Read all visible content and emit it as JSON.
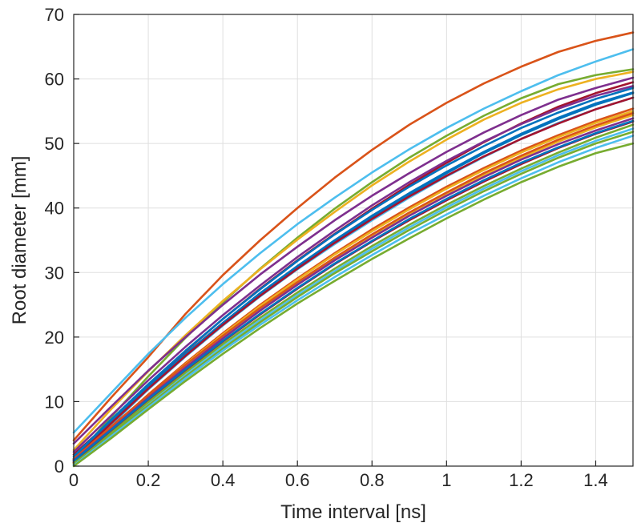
{
  "chart_data": {
    "type": "line",
    "title": "",
    "xlabel": "Time interval [ns]",
    "ylabel": "Root diameter [mm]",
    "xlim": [
      0,
      1.5
    ],
    "ylim": [
      0,
      70
    ],
    "x_ticks": [
      0,
      0.2,
      0.4,
      0.6,
      0.8,
      1,
      1.2,
      1.4
    ],
    "x_tick_labels": [
      "0",
      "0.2",
      "0.4",
      "0.6",
      "0.8",
      "1",
      "1.2",
      "1.4"
    ],
    "y_ticks": [
      0,
      10,
      20,
      30,
      40,
      50,
      60,
      70
    ],
    "y_tick_labels": [
      "0",
      "10",
      "20",
      "30",
      "40",
      "50",
      "60",
      "70"
    ],
    "grid": true,
    "legend": false,
    "x": [
      0,
      0.1,
      0.2,
      0.3,
      0.4,
      0.5,
      0.6,
      0.7,
      0.8,
      0.9,
      1.0,
      1.1,
      1.2,
      1.3,
      1.4,
      1.5
    ],
    "series": [
      {
        "color": "#D95319",
        "values": [
          4.0,
          10.6,
          16.9,
          23.6,
          29.6,
          35.0,
          40.0,
          44.7,
          49.0,
          52.9,
          56.3,
          59.3,
          61.9,
          64.2,
          65.9,
          67.2
        ]
      },
      {
        "color": "#4DBEEE",
        "values": [
          5.2,
          11.3,
          17.4,
          23.0,
          28.2,
          33.0,
          37.5,
          41.6,
          45.5,
          49.1,
          52.4,
          55.4,
          58.1,
          60.6,
          62.7,
          64.6
        ]
      },
      {
        "color": "#77AC30",
        "values": [
          1.0,
          7.6,
          13.9,
          19.9,
          25.4,
          30.6,
          35.4,
          39.9,
          44.0,
          47.8,
          51.2,
          54.3,
          57.0,
          59.2,
          60.6,
          61.5
        ]
      },
      {
        "color": "#EDB120",
        "values": [
          2.5,
          8.8,
          14.7,
          20.3,
          25.6,
          30.5,
          35.1,
          39.4,
          43.5,
          47.2,
          50.6,
          53.7,
          56.3,
          58.4,
          60.0,
          61.1
        ]
      },
      {
        "color": "#7E2F8E",
        "values": [
          3.5,
          9.2,
          14.8,
          20.0,
          25.0,
          29.7,
          34.0,
          38.1,
          41.9,
          45.4,
          48.7,
          51.7,
          54.4,
          56.8,
          58.6,
          60.2
        ]
      },
      {
        "color": "#A2142F",
        "values": [
          1.8,
          7.0,
          12.6,
          17.8,
          22.8,
          27.5,
          31.9,
          36.0,
          39.9,
          43.6,
          47.0,
          50.2,
          53.1,
          55.7,
          57.8,
          59.5
        ]
      },
      {
        "color": "#7E2F8E",
        "values": [
          2.2,
          7.8,
          13.3,
          18.5,
          23.4,
          28.0,
          32.4,
          36.5,
          40.4,
          44.0,
          47.3,
          50.3,
          53.0,
          55.4,
          57.4,
          58.9
        ]
      },
      {
        "color": "#0072BD",
        "values": [
          1.5,
          7.2,
          12.7,
          17.9,
          22.8,
          27.4,
          31.8,
          35.9,
          39.7,
          43.3,
          46.6,
          49.6,
          52.4,
          54.8,
          56.9,
          58.6
        ]
      },
      {
        "color": "#0072BD",
        "values": [
          0.6,
          6.4,
          11.9,
          17.0,
          21.8,
          26.4,
          30.7,
          34.7,
          38.5,
          42.1,
          45.4,
          48.5,
          51.3,
          53.8,
          56.0,
          57.8
        ]
      },
      {
        "color": "#0072BD",
        "values": [
          1.2,
          6.9,
          12.3,
          17.4,
          22.2,
          26.8,
          31.0,
          35.0,
          38.8,
          42.3,
          45.6,
          48.7,
          51.5,
          54.0,
          56.2,
          57.9
        ]
      },
      {
        "color": "#4DBEEE",
        "values": [
          0.8,
          6.5,
          11.9,
          17.0,
          21.8,
          26.3,
          30.5,
          34.4,
          38.1,
          41.6,
          44.9,
          47.9,
          50.7,
          53.2,
          55.3,
          57.1
        ]
      },
      {
        "color": "#A2142F",
        "values": [
          1.0,
          6.6,
          12.0,
          17.1,
          21.9,
          26.4,
          30.6,
          34.6,
          38.3,
          41.8,
          45.0,
          48.0,
          50.7,
          53.1,
          55.3,
          57.1
        ]
      },
      {
        "color": "#D95319",
        "values": [
          0.5,
          5.9,
          11.1,
          16.0,
          20.6,
          25.0,
          29.1,
          33.0,
          36.7,
          40.1,
          43.3,
          46.2,
          48.9,
          51.3,
          53.5,
          55.4
        ]
      },
      {
        "color": "#EDB120",
        "values": [
          0.7,
          5.8,
          10.9,
          15.8,
          20.4,
          24.8,
          28.9,
          32.8,
          36.4,
          39.8,
          43.0,
          45.9,
          48.6,
          51.0,
          53.2,
          55.0
        ]
      },
      {
        "color": "#EDB120",
        "values": [
          0.4,
          5.4,
          10.4,
          15.2,
          19.8,
          24.1,
          28.2,
          32.0,
          35.6,
          39.0,
          42.2,
          45.1,
          47.8,
          50.3,
          52.5,
          54.4
        ]
      },
      {
        "color": "#D95319",
        "values": [
          1.1,
          6.1,
          11.0,
          15.7,
          20.2,
          24.5,
          28.5,
          32.3,
          35.9,
          39.3,
          42.4,
          45.4,
          48.1,
          50.6,
          52.8,
          54.7
        ]
      },
      {
        "color": "#7E2F8E",
        "values": [
          0.9,
          5.7,
          10.6,
          15.3,
          19.8,
          24.1,
          28.1,
          31.9,
          35.4,
          38.8,
          41.9,
          44.8,
          47.5,
          49.9,
          52.0,
          53.9
        ]
      },
      {
        "color": "#A2142F",
        "values": [
          0.6,
          5.4,
          10.2,
          14.8,
          19.3,
          23.5,
          27.5,
          31.3,
          34.8,
          38.1,
          41.2,
          44.1,
          46.8,
          49.3,
          51.5,
          53.4
        ]
      },
      {
        "color": "#77AC30",
        "values": [
          0.3,
          5.1,
          9.9,
          14.5,
          18.9,
          23.0,
          26.9,
          30.6,
          34.1,
          37.4,
          40.5,
          43.4,
          46.1,
          48.6,
          50.9,
          52.9
        ]
      },
      {
        "color": "#0072BD",
        "values": [
          0.8,
          5.6,
          10.4,
          15.0,
          19.4,
          23.6,
          27.6,
          31.4,
          34.9,
          38.3,
          41.4,
          44.3,
          47.0,
          49.4,
          51.6,
          53.5
        ]
      },
      {
        "color": "#4DBEEE",
        "values": [
          0.2,
          4.8,
          9.5,
          14.1,
          18.5,
          22.6,
          26.5,
          30.2,
          33.7,
          37.0,
          40.1,
          43.0,
          45.7,
          48.2,
          50.4,
          52.3
        ]
      },
      {
        "color": "#77AC30",
        "values": [
          0.4,
          4.9,
          9.4,
          13.9,
          18.2,
          22.3,
          26.2,
          29.9,
          33.3,
          36.6,
          39.7,
          42.6,
          45.3,
          47.8,
          50.0,
          51.8
        ]
      },
      {
        "color": "#4DBEEE",
        "values": [
          0.1,
          4.6,
          9.1,
          13.6,
          17.9,
          21.9,
          25.7,
          29.3,
          32.7,
          36.0,
          39.0,
          41.9,
          44.6,
          47.1,
          49.3,
          51.2
        ]
      },
      {
        "color": "#77AC30",
        "values": [
          0.0,
          4.3,
          8.8,
          13.2,
          17.4,
          21.4,
          25.2,
          28.7,
          32.1,
          35.3,
          38.4,
          41.3,
          44.0,
          46.4,
          48.5,
          50.0
        ]
      }
    ]
  }
}
